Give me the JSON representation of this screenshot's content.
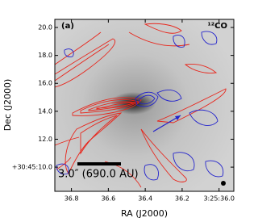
{
  "chart_data": {
    "type": "contour-map",
    "panel_label": "(a)",
    "annotation": "¹²CO",
    "scale_bar_label": "3.0″ (690.0 AU)",
    "xlabel": "RA (J2000)",
    "ylabel": "Dec (J2000)",
    "xlim": [
      36.89,
      35.92
    ],
    "ylim": [
      8.27,
      20.58
    ],
    "xticks": [
      36.8,
      36.6,
      36.4,
      36.2,
      {
        "value": 36.0,
        "label": "3:25:36.0"
      }
    ],
    "yticks": [
      {
        "value": 10,
        "label": "+30:45:10.0"
      },
      {
        "value": 12,
        "label": "12.0"
      },
      {
        "value": 14,
        "label": "14.0"
      },
      {
        "value": 16,
        "label": "16.0"
      },
      {
        "value": 18,
        "label": "18.0"
      },
      {
        "value": 20,
        "label": "20.0"
      }
    ]
  }
}
